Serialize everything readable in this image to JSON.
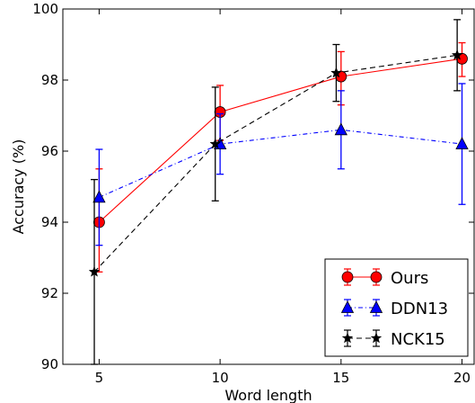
{
  "chart_data": {
    "type": "line",
    "xlabel": "Word length",
    "ylabel": "Accuracy (%)",
    "xlim": [
      3.5,
      20.5
    ],
    "ylim": [
      90,
      100
    ],
    "xticks": [
      5,
      10,
      15,
      20
    ],
    "yticks": [
      90,
      92,
      94,
      96,
      98,
      100
    ],
    "grid": false,
    "legend_position": "bottom-right",
    "series": [
      {
        "name": "Ours",
        "color": "#ff0000",
        "marker": "circle",
        "line_style": "solid",
        "x": [
          5,
          10,
          15,
          20
        ],
        "y": [
          94.0,
          97.1,
          98.1,
          98.6
        ],
        "err_low": [
          92.6,
          96.3,
          97.3,
          98.1
        ],
        "err_high": [
          95.5,
          97.85,
          98.8,
          99.05
        ]
      },
      {
        "name": "DDN13",
        "color": "#0000ff",
        "marker": "triangle",
        "line_style": "dashdot",
        "x": [
          5,
          10,
          15,
          20
        ],
        "y": [
          94.7,
          96.2,
          96.6,
          96.2
        ],
        "err_low": [
          93.35,
          95.35,
          95.5,
          94.5
        ],
        "err_high": [
          96.05,
          97.05,
          97.7,
          97.9
        ]
      },
      {
        "name": "NCK15",
        "color": "#000000",
        "marker": "star",
        "line_style": "dashed",
        "x": [
          4.8,
          9.8,
          14.8,
          19.8
        ],
        "y": [
          92.6,
          96.2,
          98.2,
          98.7
        ],
        "err_low": [
          90.0,
          94.6,
          97.4,
          97.7
        ],
        "err_high": [
          95.2,
          97.8,
          99.0,
          99.7
        ]
      }
    ]
  }
}
